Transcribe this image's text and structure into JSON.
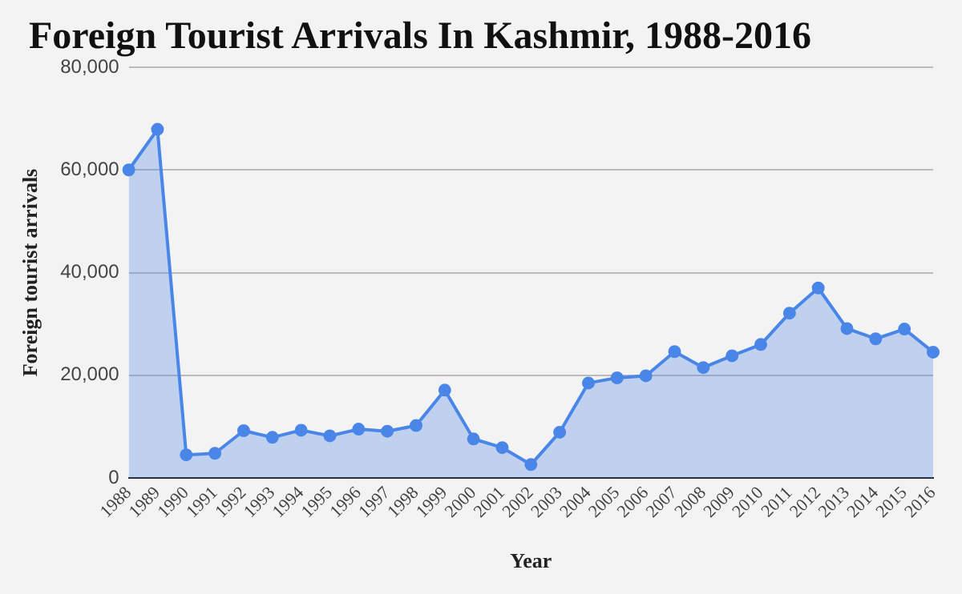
{
  "chart_data": {
    "type": "area",
    "title": "Foreign Tourist Arrivals In Kashmir, 1988-2016",
    "xlabel": "Year",
    "ylabel": "Foreign tourist arrivals",
    "categories": [
      "1988",
      "1989",
      "1990",
      "1991",
      "1992",
      "1993",
      "1994",
      "1995",
      "1996",
      "1997",
      "1998",
      "1999",
      "2000",
      "2001",
      "2002",
      "2003",
      "2004",
      "2005",
      "2006",
      "2007",
      "2008",
      "2009",
      "2010",
      "2011",
      "2012",
      "2013",
      "2014",
      "2015",
      "2016"
    ],
    "series": [
      {
        "color": "#4a86e8",
        "values": [
          60000,
          67900,
          4500,
          4800,
          9200,
          7900,
          9300,
          8200,
          9500,
          9100,
          10200,
          17100,
          7600,
          5900,
          2600,
          8900,
          18500,
          19500,
          19900,
          24600,
          21500,
          23800,
          26000,
          32100,
          37000,
          29100,
          27100,
          29000,
          24500
        ]
      }
    ],
    "ylim": [
      0,
      80000
    ],
    "yticks": [
      {
        "value": 0,
        "label": "0"
      },
      {
        "value": 20000,
        "label": "20,000"
      },
      {
        "value": 40000,
        "label": "40,000"
      },
      {
        "value": 60000,
        "label": "60,000"
      },
      {
        "value": 80000,
        "label": "80,000"
      }
    ],
    "grid": "y",
    "marker": "circle"
  }
}
